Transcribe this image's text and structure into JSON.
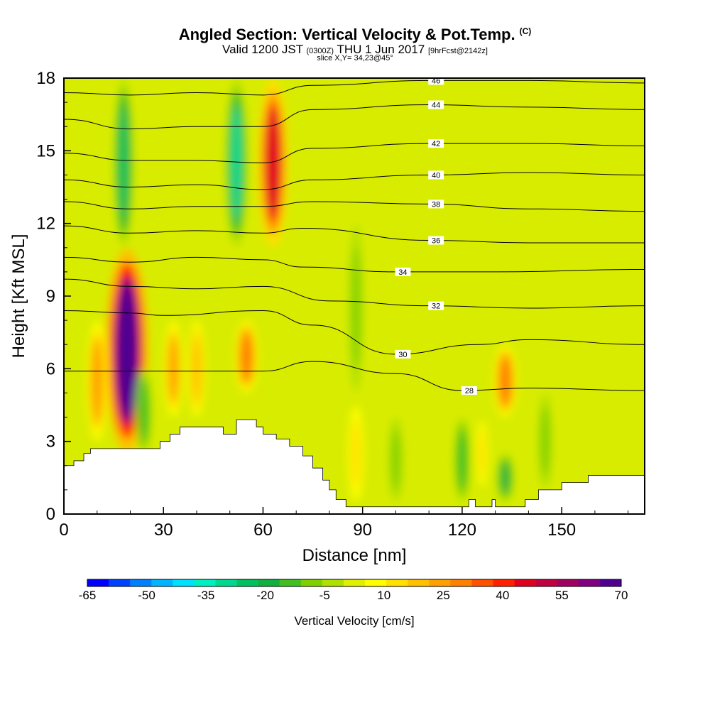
{
  "header": {
    "title": "Angled Section: Vertical Velocity & Pot.Temp.",
    "title_unit": "(C)",
    "valid_prefix": "Valid 1200 JST",
    "valid_utc": "(0300Z)",
    "valid_date": "THU 1 Jun 2017",
    "forecast": "[9hrFcst@2142z]",
    "slice": "slice X,Y= 34,23@45°"
  },
  "chart_data": {
    "type": "heatmap",
    "xlabel": "Distance [nm]",
    "ylabel": "Height [Kft MSL]",
    "xlim": [
      0,
      175
    ],
    "ylim": [
      0,
      18
    ],
    "xticks": [
      0,
      30,
      60,
      90,
      120,
      150
    ],
    "yticks": [
      0,
      3,
      6,
      9,
      12,
      15,
      18
    ],
    "colorbar": {
      "label": "Vertical Velocity [cm/s]",
      "ticks": [
        "-65",
        "-50",
        "-35",
        "-20",
        "-5",
        "10",
        "25",
        "40",
        "55",
        "70"
      ],
      "colors": [
        "#0000ff",
        "#0040ff",
        "#0080ff",
        "#00b4ff",
        "#00e0ff",
        "#00f0c0",
        "#00d890",
        "#00c060",
        "#10b040",
        "#40c020",
        "#80d000",
        "#b0e000",
        "#e0f000",
        "#ffff00",
        "#ffe000",
        "#ffc000",
        "#ffa000",
        "#ff8000",
        "#ff5000",
        "#ff2000",
        "#e00020",
        "#c00040",
        "#a00060",
        "#800080",
        "#500090"
      ]
    },
    "velocity_features": [
      {
        "x": 19,
        "ymin": 2.5,
        "ymax": 11,
        "peak": 70
      },
      {
        "x": 63,
        "ymin": 11,
        "ymax": 18,
        "peak": 45
      },
      {
        "x": 55,
        "ymin": 5,
        "ymax": 8,
        "peak": 30
      },
      {
        "x": 133,
        "ymin": 4,
        "ymax": 7,
        "peak": 30
      },
      {
        "x": 10,
        "ymin": 3,
        "ymax": 8,
        "peak": 25
      },
      {
        "x": 33,
        "ymin": 4,
        "ymax": 8,
        "peak": 22
      },
      {
        "x": 40,
        "ymin": 4,
        "ymax": 8,
        "peak": 18
      },
      {
        "x": 88,
        "ymin": 0.5,
        "ymax": 4.5,
        "peak": 15
      },
      {
        "x": 126,
        "ymin": 1,
        "ymax": 4,
        "peak": 12
      },
      {
        "x": 18,
        "ymin": 11,
        "ymax": 18,
        "peak": -22
      },
      {
        "x": 52,
        "ymin": 11,
        "ymax": 18,
        "peak": -28
      },
      {
        "x": 24,
        "ymin": 2.5,
        "ymax": 6,
        "peak": -15
      },
      {
        "x": 120,
        "ymin": 0.5,
        "ymax": 4,
        "peak": -15
      },
      {
        "x": 133,
        "ymin": 0.5,
        "ymax": 2.5,
        "peak": -18
      },
      {
        "x": 100,
        "ymin": 0.5,
        "ymax": 4,
        "peak": -10
      },
      {
        "x": 145,
        "ymin": 1,
        "ymax": 5,
        "peak": -10
      },
      {
        "x": 88,
        "ymin": 5,
        "ymax": 12,
        "peak": -8
      }
    ],
    "isentropes": [
      {
        "label": "28",
        "points": [
          [
            0,
            5.9
          ],
          [
            30,
            5.9
          ],
          [
            60,
            5.9
          ],
          [
            75,
            6.3
          ],
          [
            100,
            5.8
          ],
          [
            120,
            5.1
          ],
          [
            140,
            5.2
          ],
          [
            175,
            5.1
          ]
        ]
      },
      {
        "label": "30",
        "points": [
          [
            0,
            8.4
          ],
          [
            20,
            8.3
          ],
          [
            30,
            8.2
          ],
          [
            60,
            8.4
          ],
          [
            75,
            7.8
          ],
          [
            100,
            6.6
          ],
          [
            125,
            7.0
          ],
          [
            140,
            7.2
          ],
          [
            175,
            7.0
          ]
        ]
      },
      {
        "label": "32",
        "points": [
          [
            0,
            9.7
          ],
          [
            20,
            9.4
          ],
          [
            40,
            9.3
          ],
          [
            60,
            9.4
          ],
          [
            80,
            8.8
          ],
          [
            110,
            8.6
          ],
          [
            140,
            8.5
          ],
          [
            175,
            8.6
          ]
        ]
      },
      {
        "label": "34",
        "points": [
          [
            0,
            10.6
          ],
          [
            20,
            10.4
          ],
          [
            40,
            10.6
          ],
          [
            60,
            10.5
          ],
          [
            72,
            10.2
          ],
          [
            100,
            10.0
          ],
          [
            130,
            10.0
          ],
          [
            175,
            10.1
          ]
        ]
      },
      {
        "label": "36",
        "points": [
          [
            0,
            11.9
          ],
          [
            20,
            11.6
          ],
          [
            40,
            11.7
          ],
          [
            60,
            11.6
          ],
          [
            72,
            11.8
          ],
          [
            110,
            11.3
          ],
          [
            140,
            11.2
          ],
          [
            175,
            11.2
          ]
        ]
      },
      {
        "label": "38",
        "points": [
          [
            0,
            12.9
          ],
          [
            20,
            12.6
          ],
          [
            40,
            12.7
          ],
          [
            60,
            12.7
          ],
          [
            75,
            12.9
          ],
          [
            110,
            12.8
          ],
          [
            140,
            12.6
          ],
          [
            175,
            12.5
          ]
        ]
      },
      {
        "label": "40",
        "points": [
          [
            0,
            13.8
          ],
          [
            20,
            13.5
          ],
          [
            40,
            13.6
          ],
          [
            60,
            13.4
          ],
          [
            75,
            13.8
          ],
          [
            110,
            14.0
          ],
          [
            140,
            14.1
          ],
          [
            175,
            14.0
          ]
        ]
      },
      {
        "label": "42",
        "points": [
          [
            0,
            14.9
          ],
          [
            20,
            14.6
          ],
          [
            40,
            14.6
          ],
          [
            60,
            14.5
          ],
          [
            75,
            15.1
          ],
          [
            110,
            15.3
          ],
          [
            140,
            15.3
          ],
          [
            175,
            15.2
          ]
        ]
      },
      {
        "label": "44",
        "points": [
          [
            0,
            16.3
          ],
          [
            20,
            15.9
          ],
          [
            40,
            16.0
          ],
          [
            60,
            16.0
          ],
          [
            75,
            16.7
          ],
          [
            110,
            16.9
          ],
          [
            140,
            16.8
          ],
          [
            175,
            16.7
          ]
        ]
      },
      {
        "label": "46",
        "points": [
          [
            0,
            17.4
          ],
          [
            20,
            17.3
          ],
          [
            40,
            17.4
          ],
          [
            60,
            17.3
          ],
          [
            75,
            17.7
          ],
          [
            110,
            17.9
          ],
          [
            140,
            17.9
          ],
          [
            175,
            17.8
          ]
        ]
      }
    ],
    "terrain": [
      [
        0,
        2
      ],
      [
        3,
        2
      ],
      [
        3,
        2.2
      ],
      [
        6,
        2.2
      ],
      [
        6,
        2.5
      ],
      [
        8,
        2.5
      ],
      [
        8,
        2.7
      ],
      [
        29,
        2.7
      ],
      [
        29,
        3
      ],
      [
        32,
        3
      ],
      [
        32,
        3.3
      ],
      [
        35,
        3.3
      ],
      [
        35,
        3.6
      ],
      [
        48,
        3.6
      ],
      [
        48,
        3.3
      ],
      [
        52,
        3.3
      ],
      [
        52,
        3.9
      ],
      [
        58,
        3.9
      ],
      [
        58,
        3.6
      ],
      [
        60,
        3.6
      ],
      [
        60,
        3.3
      ],
      [
        64,
        3.3
      ],
      [
        64,
        3.1
      ],
      [
        68,
        3.1
      ],
      [
        68,
        2.8
      ],
      [
        72,
        2.8
      ],
      [
        72,
        2.4
      ],
      [
        75,
        2.4
      ],
      [
        75,
        1.9
      ],
      [
        78,
        1.9
      ],
      [
        78,
        1.4
      ],
      [
        80,
        1.4
      ],
      [
        80,
        1
      ],
      [
        82,
        1
      ],
      [
        82,
        0.6
      ],
      [
        85,
        0.6
      ],
      [
        85,
        0.3
      ],
      [
        122,
        0.3
      ],
      [
        122,
        0.6
      ],
      [
        124,
        0.6
      ],
      [
        124,
        0.3
      ],
      [
        129,
        0.3
      ],
      [
        129,
        0.6
      ],
      [
        130,
        0.6
      ],
      [
        130,
        0.3
      ],
      [
        139,
        0.3
      ],
      [
        139,
        0.6
      ],
      [
        143,
        0.6
      ],
      [
        143,
        1
      ],
      [
        150,
        1
      ],
      [
        150,
        1.3
      ],
      [
        158,
        1.3
      ],
      [
        158,
        1.6
      ],
      [
        175,
        1.6
      ]
    ]
  }
}
